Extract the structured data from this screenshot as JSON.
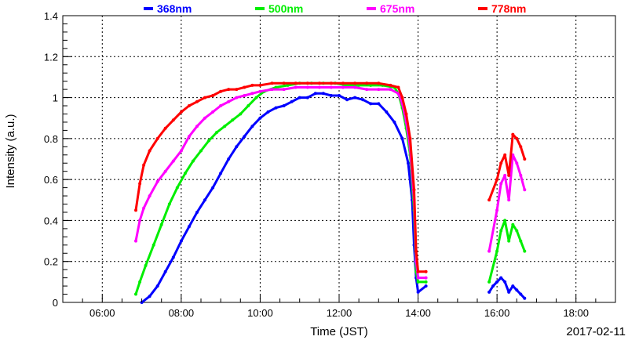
{
  "chart_data": {
    "type": "scatter",
    "title": "",
    "xlabel": "Time (JST)",
    "ylabel": "Intensity (a.u.)",
    "date_label": "2017-02-11",
    "x_unit": "hours (JST)",
    "xlim": [
      5.0,
      19.0
    ],
    "ylim": [
      0,
      1.4
    ],
    "x_ticks": [
      6,
      8,
      10,
      12,
      14,
      16,
      18
    ],
    "x_tick_labels": [
      "06:00",
      "08:00",
      "10:00",
      "12:00",
      "14:00",
      "16:00",
      "18:00"
    ],
    "y_ticks": [
      0,
      0.2,
      0.4,
      0.6,
      0.8,
      1.0,
      1.2,
      1.4
    ],
    "y_tick_labels": [
      "0",
      "0.2",
      "0.4",
      "0.6",
      "0.8",
      "1",
      "1.2",
      "1.4"
    ],
    "grid": true,
    "legend_position": "top",
    "series": [
      {
        "name": "368nm",
        "color": "#0000ff",
        "points": [
          [
            7.0,
            0.0
          ],
          [
            7.2,
            0.03
          ],
          [
            7.4,
            0.08
          ],
          [
            7.6,
            0.15
          ],
          [
            7.8,
            0.22
          ],
          [
            8.0,
            0.3
          ],
          [
            8.2,
            0.37
          ],
          [
            8.4,
            0.44
          ],
          [
            8.6,
            0.5
          ],
          [
            8.8,
            0.56
          ],
          [
            9.0,
            0.63
          ],
          [
            9.2,
            0.7
          ],
          [
            9.4,
            0.76
          ],
          [
            9.6,
            0.81
          ],
          [
            9.8,
            0.86
          ],
          [
            10.0,
            0.9
          ],
          [
            10.2,
            0.93
          ],
          [
            10.4,
            0.95
          ],
          [
            10.6,
            0.96
          ],
          [
            10.8,
            0.98
          ],
          [
            11.0,
            1.0
          ],
          [
            11.2,
            1.0
          ],
          [
            11.4,
            1.02
          ],
          [
            11.6,
            1.02
          ],
          [
            11.8,
            1.01
          ],
          [
            12.0,
            1.01
          ],
          [
            12.2,
            0.99
          ],
          [
            12.4,
            1.0
          ],
          [
            12.6,
            0.99
          ],
          [
            12.8,
            0.97
          ],
          [
            13.0,
            0.97
          ],
          [
            13.2,
            0.93
          ],
          [
            13.4,
            0.88
          ],
          [
            13.6,
            0.8
          ],
          [
            13.75,
            0.68
          ],
          [
            13.85,
            0.5
          ],
          [
            13.9,
            0.28
          ],
          [
            13.95,
            0.12
          ],
          [
            14.0,
            0.05
          ],
          [
            14.2,
            0.08
          ],
          [
            15.8,
            0.05
          ],
          [
            15.9,
            0.08
          ],
          [
            16.0,
            0.1
          ],
          [
            16.1,
            0.12
          ],
          [
            16.2,
            0.1
          ],
          [
            16.3,
            0.05
          ],
          [
            16.4,
            0.08
          ],
          [
            16.5,
            0.06
          ],
          [
            16.6,
            0.04
          ],
          [
            16.7,
            0.02
          ]
        ]
      },
      {
        "name": "500nm",
        "color": "#00ee00",
        "points": [
          [
            6.85,
            0.04
          ],
          [
            6.95,
            0.1
          ],
          [
            7.1,
            0.18
          ],
          [
            7.3,
            0.28
          ],
          [
            7.5,
            0.38
          ],
          [
            7.7,
            0.48
          ],
          [
            7.9,
            0.56
          ],
          [
            8.1,
            0.63
          ],
          [
            8.3,
            0.69
          ],
          [
            8.5,
            0.74
          ],
          [
            8.7,
            0.79
          ],
          [
            8.9,
            0.83
          ],
          [
            9.1,
            0.86
          ],
          [
            9.3,
            0.89
          ],
          [
            9.5,
            0.92
          ],
          [
            9.7,
            0.96
          ],
          [
            9.9,
            1.0
          ],
          [
            10.1,
            1.03
          ],
          [
            10.4,
            1.05
          ],
          [
            10.7,
            1.06
          ],
          [
            11.0,
            1.07
          ],
          [
            11.3,
            1.07
          ],
          [
            11.6,
            1.07
          ],
          [
            11.9,
            1.07
          ],
          [
            12.2,
            1.06
          ],
          [
            12.5,
            1.06
          ],
          [
            12.8,
            1.06
          ],
          [
            13.1,
            1.06
          ],
          [
            13.4,
            1.05
          ],
          [
            13.5,
            1.02
          ],
          [
            13.6,
            0.95
          ],
          [
            13.7,
            0.85
          ],
          [
            13.8,
            0.72
          ],
          [
            13.9,
            0.45
          ],
          [
            13.95,
            0.15
          ],
          [
            14.0,
            0.1
          ],
          [
            14.2,
            0.1
          ],
          [
            15.8,
            0.1
          ],
          [
            16.0,
            0.25
          ],
          [
            16.1,
            0.35
          ],
          [
            16.2,
            0.4
          ],
          [
            16.3,
            0.3
          ],
          [
            16.4,
            0.38
          ],
          [
            16.5,
            0.35
          ],
          [
            16.6,
            0.3
          ],
          [
            16.7,
            0.25
          ]
        ]
      },
      {
        "name": "675nm",
        "color": "#ff00ff",
        "points": [
          [
            6.85,
            0.3
          ],
          [
            6.95,
            0.4
          ],
          [
            7.05,
            0.46
          ],
          [
            7.2,
            0.52
          ],
          [
            7.4,
            0.59
          ],
          [
            7.6,
            0.64
          ],
          [
            7.8,
            0.69
          ],
          [
            8.0,
            0.74
          ],
          [
            8.2,
            0.81
          ],
          [
            8.4,
            0.86
          ],
          [
            8.6,
            0.9
          ],
          [
            8.8,
            0.93
          ],
          [
            9.0,
            0.96
          ],
          [
            9.2,
            0.98
          ],
          [
            9.4,
            1.0
          ],
          [
            9.6,
            1.01
          ],
          [
            9.8,
            1.02
          ],
          [
            10.0,
            1.03
          ],
          [
            10.3,
            1.04
          ],
          [
            10.6,
            1.04
          ],
          [
            10.9,
            1.05
          ],
          [
            11.2,
            1.05
          ],
          [
            11.5,
            1.05
          ],
          [
            11.8,
            1.05
          ],
          [
            12.1,
            1.05
          ],
          [
            12.4,
            1.05
          ],
          [
            12.7,
            1.04
          ],
          [
            13.0,
            1.04
          ],
          [
            13.3,
            1.04
          ],
          [
            13.5,
            1.02
          ],
          [
            13.6,
            0.97
          ],
          [
            13.7,
            0.88
          ],
          [
            13.8,
            0.75
          ],
          [
            13.9,
            0.5
          ],
          [
            13.95,
            0.2
          ],
          [
            14.0,
            0.12
          ],
          [
            14.2,
            0.12
          ],
          [
            15.8,
            0.25
          ],
          [
            16.0,
            0.45
          ],
          [
            16.1,
            0.58
          ],
          [
            16.2,
            0.62
          ],
          [
            16.3,
            0.5
          ],
          [
            16.4,
            0.72
          ],
          [
            16.5,
            0.68
          ],
          [
            16.6,
            0.62
          ],
          [
            16.7,
            0.55
          ]
        ]
      },
      {
        "name": "778nm",
        "color": "#ff0000",
        "points": [
          [
            6.85,
            0.45
          ],
          [
            6.95,
            0.58
          ],
          [
            7.05,
            0.67
          ],
          [
            7.2,
            0.74
          ],
          [
            7.4,
            0.8
          ],
          [
            7.6,
            0.85
          ],
          [
            7.8,
            0.89
          ],
          [
            8.0,
            0.93
          ],
          [
            8.2,
            0.96
          ],
          [
            8.4,
            0.98
          ],
          [
            8.6,
            1.0
          ],
          [
            8.8,
            1.01
          ],
          [
            9.0,
            1.03
          ],
          [
            9.2,
            1.04
          ],
          [
            9.4,
            1.04
          ],
          [
            9.6,
            1.05
          ],
          [
            9.8,
            1.06
          ],
          [
            10.0,
            1.06
          ],
          [
            10.3,
            1.07
          ],
          [
            10.6,
            1.07
          ],
          [
            10.9,
            1.07
          ],
          [
            11.2,
            1.07
          ],
          [
            11.5,
            1.07
          ],
          [
            11.8,
            1.07
          ],
          [
            12.1,
            1.07
          ],
          [
            12.4,
            1.07
          ],
          [
            12.7,
            1.07
          ],
          [
            13.0,
            1.07
          ],
          [
            13.3,
            1.06
          ],
          [
            13.5,
            1.05
          ],
          [
            13.6,
            1.0
          ],
          [
            13.7,
            0.92
          ],
          [
            13.8,
            0.8
          ],
          [
            13.9,
            0.55
          ],
          [
            13.95,
            0.25
          ],
          [
            14.0,
            0.15
          ],
          [
            14.2,
            0.15
          ],
          [
            15.8,
            0.5
          ],
          [
            16.0,
            0.6
          ],
          [
            16.1,
            0.68
          ],
          [
            16.2,
            0.72
          ],
          [
            16.3,
            0.62
          ],
          [
            16.4,
            0.82
          ],
          [
            16.5,
            0.8
          ],
          [
            16.6,
            0.76
          ],
          [
            16.7,
            0.7
          ]
        ]
      }
    ]
  }
}
